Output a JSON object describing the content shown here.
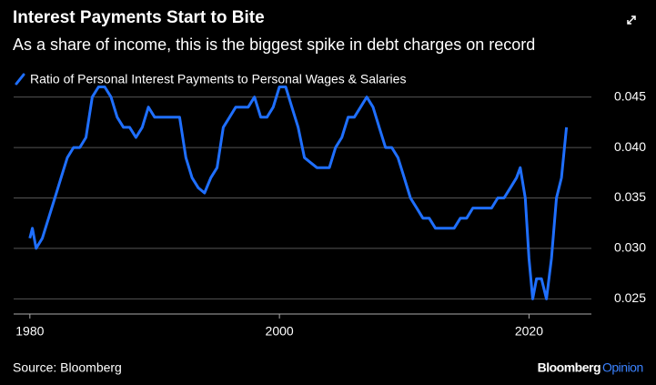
{
  "chart_data": {
    "type": "line",
    "title": "Interest Payments Start to Bite",
    "subtitle": "As a share of income, this is the biggest spike in debt charges on record",
    "source": "Source: Bloomberg",
    "brand": [
      "Bloomberg",
      "Opinion"
    ],
    "x": [
      1980,
      1980.2,
      1980.5,
      1981,
      1981.5,
      1982,
      1982.5,
      1983,
      1983.5,
      1984,
      1984.5,
      1985,
      1985.5,
      1986,
      1986.5,
      1987,
      1987.5,
      1988,
      1988.5,
      1989,
      1989.5,
      1990,
      1991,
      1992,
      1992.5,
      1993,
      1993.5,
      1994,
      1994.5,
      1995,
      1995.5,
      1996,
      1996.5,
      1997,
      1997.5,
      1998,
      1998.5,
      1999,
      1999.5,
      2000,
      2000.5,
      2001,
      2001.5,
      2002,
      2002.5,
      2003,
      2004,
      2004.5,
      2005,
      2005.5,
      2006,
      2006.5,
      2007,
      2007.5,
      2008,
      2008.5,
      2009,
      2009.5,
      2010,
      2010.5,
      2011,
      2011.5,
      2012,
      2012.5,
      2013,
      2014,
      2014.5,
      2015,
      2015.5,
      2016,
      2017,
      2017.5,
      2018,
      2018.5,
      2019,
      2019.3,
      2019.7,
      2020,
      2020.3,
      2020.6,
      2021,
      2021.4,
      2021.8,
      2022.2,
      2022.6,
      2023
    ],
    "series": [
      {
        "name": "Ratio of Personal Interest Payments to Personal Wages & Salaries",
        "color": "#1f6fff",
        "values": [
          0.031,
          0.032,
          0.03,
          0.031,
          0.033,
          0.035,
          0.037,
          0.039,
          0.04,
          0.04,
          0.041,
          0.045,
          0.046,
          0.046,
          0.045,
          0.043,
          0.042,
          0.042,
          0.041,
          0.042,
          0.044,
          0.043,
          0.043,
          0.043,
          0.039,
          0.037,
          0.036,
          0.0355,
          0.037,
          0.038,
          0.042,
          0.043,
          0.044,
          0.044,
          0.044,
          0.045,
          0.043,
          0.043,
          0.044,
          0.046,
          0.046,
          0.044,
          0.042,
          0.039,
          0.0385,
          0.038,
          0.038,
          0.04,
          0.041,
          0.043,
          0.043,
          0.044,
          0.045,
          0.044,
          0.042,
          0.04,
          0.04,
          0.039,
          0.037,
          0.035,
          0.034,
          0.033,
          0.033,
          0.032,
          0.032,
          0.032,
          0.033,
          0.033,
          0.034,
          0.034,
          0.034,
          0.035,
          0.035,
          0.036,
          0.037,
          0.038,
          0.035,
          0.029,
          0.025,
          0.027,
          0.027,
          0.025,
          0.029,
          0.035,
          0.037,
          0.042
        ]
      }
    ],
    "xlim": [
      1978.7,
      2025
    ],
    "xticks": [
      1980,
      2000,
      2020
    ],
    "ylim": [
      0.0235,
      0.0465
    ],
    "yticks": [
      0.025,
      {
        "value": 0.03,
        "label": "0.030"
      },
      0.035,
      {
        "value": 0.04,
        "label": "0.040"
      },
      0.045
    ],
    "grid": true
  }
}
